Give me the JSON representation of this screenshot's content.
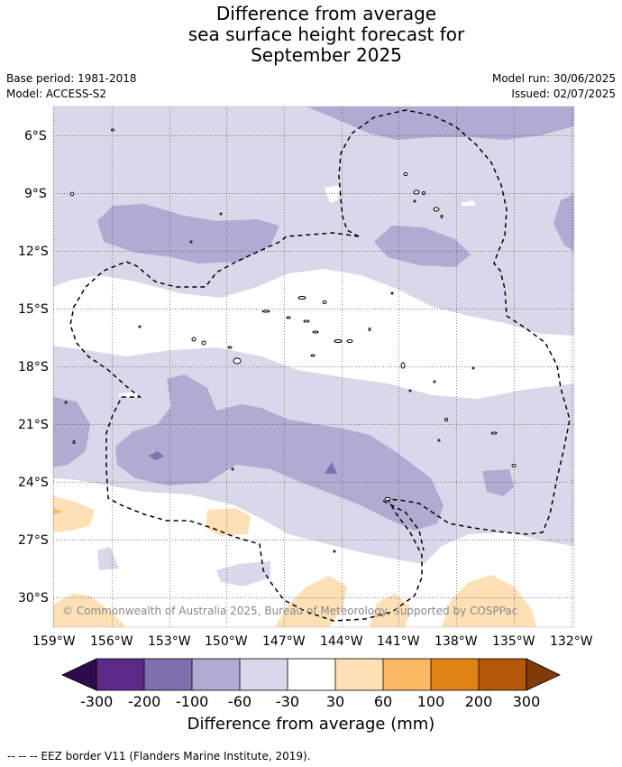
{
  "title_lines": [
    "Difference from average",
    "sea surface height forecast for",
    "September 2025"
  ],
  "meta": {
    "base_period": "Base period: 1981-2018",
    "model": "Model: ACCESS-S2",
    "model_run": "Model run: 30/06/2025",
    "issued": "Issued: 02/07/2025"
  },
  "map": {
    "lat_ticks": [
      "6°S",
      "9°S",
      "12°S",
      "15°S",
      "18°S",
      "21°S",
      "24°S",
      "27°S",
      "30°S"
    ],
    "lon_ticks": [
      "159°W",
      "156°W",
      "153°W",
      "150°W",
      "147°W",
      "144°W",
      "141°W",
      "138°W",
      "135°W",
      "132°W"
    ],
    "credit": "© Commonwealth of Australia 2025, Bureau of Meteorology, supported by COSPPac"
  },
  "colorbar": {
    "title": "Difference from average (mm)",
    "ticks": [
      "-300",
      "-200",
      "-100",
      "-60",
      "-30",
      "30",
      "60",
      "100",
      "200",
      "300"
    ],
    "colors": [
      "#2d0b4e",
      "#5b2a86",
      "#7f6fad",
      "#b1aad2",
      "#d8d8ea",
      "#ffffff",
      "#fee0b6",
      "#fdb863",
      "#e08214",
      "#b35806",
      "#7f3b08"
    ]
  },
  "footnote": "--  --  -- EEZ border V11 (Flanders Marine Institute, 2019)."
}
